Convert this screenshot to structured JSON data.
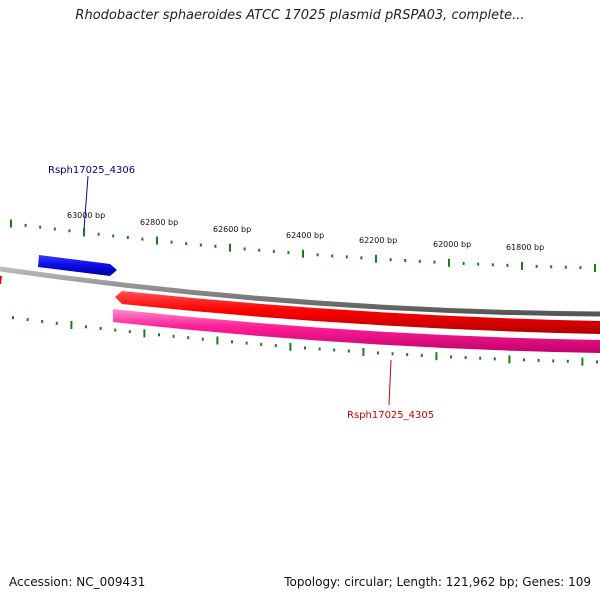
{
  "title": "Rhodobacter sphaeroides ATCC 17025 plasmid pRSPA03, complete...",
  "footer": {
    "accession_label": "Accession:",
    "accession": "NC_009431",
    "topology_label": "Topology:",
    "topology": "circular",
    "length_label": "Length:",
    "length": "121,962 bp",
    "genes_label": "Genes:",
    "genes": "109"
  },
  "ruler": {
    "unit": "bp",
    "labels": [
      "63000 bp",
      "62800 bp",
      "62600 bp",
      "62400 bp",
      "62200 bp",
      "62000 bp",
      "61800 bp"
    ],
    "tick_color": "#1a7f1a"
  },
  "genes": [
    {
      "name": "Rsph17025_4306",
      "strand": "forward",
      "color": "#1010e0",
      "label_color": "#00008b"
    },
    {
      "name": "Rsph17025_4305",
      "strand": "reverse",
      "color": "#ee0000",
      "label_color": "#cc0000"
    }
  ],
  "tracks": {
    "backbone_color": "#888888",
    "reverse_red": "#ee0000",
    "reverse_pink": "#ff1493"
  }
}
